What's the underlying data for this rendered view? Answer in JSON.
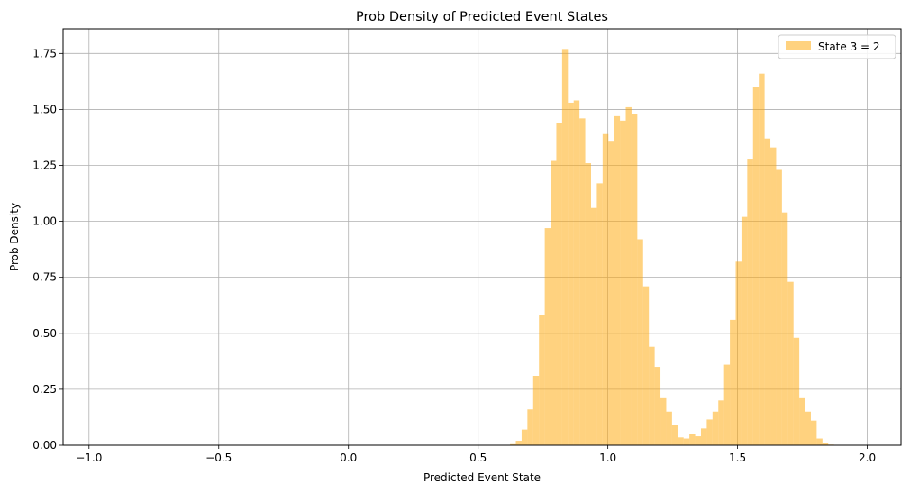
{
  "chart_data": {
    "type": "bar",
    "title": "Prob Density of Predicted Event States",
    "xlabel": "Predicted Event State",
    "ylabel": "Prob Density",
    "xlim": [
      -1.1,
      2.13
    ],
    "ylim": [
      0,
      1.86
    ],
    "xticks": [
      -1.0,
      -0.5,
      0.0,
      0.5,
      1.0,
      1.5,
      2.0
    ],
    "xtick_labels": [
      "−1.0",
      "−0.5",
      "0.0",
      "0.5",
      "1.0",
      "1.5",
      "2.0"
    ],
    "yticks": [
      0,
      0.25,
      0.5,
      0.75,
      1.0,
      1.25,
      1.5,
      1.75
    ],
    "ytick_labels": [
      "0.00",
      "0.25",
      "0.50",
      "0.75",
      "1.00",
      "1.25",
      "1.50",
      "1.75"
    ],
    "grid": true,
    "legend_position": "top-right",
    "bar_color": "#FFA500",
    "bar_opacity": 0.5,
    "series": [
      {
        "name": "State 3 = 2",
        "bin_start": 0.623,
        "bin_width": 0.0223,
        "values": [
          0.005,
          0.02,
          0.07,
          0.16,
          0.31,
          0.58,
          0.97,
          1.27,
          1.44,
          1.77,
          1.53,
          1.54,
          1.46,
          1.26,
          1.06,
          1.17,
          1.39,
          1.36,
          1.47,
          1.45,
          1.51,
          1.48,
          0.92,
          0.71,
          0.44,
          0.35,
          0.21,
          0.15,
          0.09,
          0.035,
          0.03,
          0.05,
          0.04,
          0.075,
          0.115,
          0.15,
          0.2,
          0.36,
          0.56,
          0.82,
          1.02,
          1.28,
          1.6,
          1.66,
          1.37,
          1.33,
          1.23,
          1.04,
          0.73,
          0.48,
          0.21,
          0.15,
          0.11,
          0.03,
          0.01,
          0.003
        ]
      }
    ]
  }
}
